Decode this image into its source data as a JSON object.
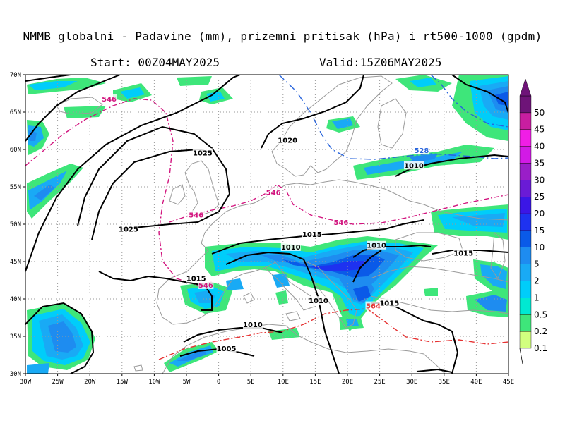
{
  "header": {
    "title": "NMMB globalni - Padavine (mm), prizemni pritisak (hPa) i rt500-1000 (gpdm)",
    "start": "Start: 00Z04MAY2025",
    "valid": "Valid:15Z06MAY2025"
  },
  "axes": {
    "lon_labels": [
      "30W",
      "25W",
      "20W",
      "15W",
      "10W",
      "5W",
      "0",
      "5E",
      "10E",
      "15E",
      "20E",
      "25E",
      "30E",
      "35E",
      "40E",
      "45E"
    ],
    "lat_labels": [
      "30N",
      "35N",
      "40N",
      "45N",
      "50N",
      "55N",
      "60N",
      "65N",
      "70N"
    ],
    "lon_range": [
      -30,
      45
    ],
    "lat_range": [
      30,
      70
    ],
    "grid": "dotted"
  },
  "colorbar": {
    "levels": [
      "0.1",
      "0.2",
      "0.5",
      "1",
      "2",
      "5",
      "10",
      "15",
      "20",
      "25",
      "30",
      "35",
      "40",
      "45",
      "50"
    ],
    "colors": [
      "#d2ff7f",
      "#3ee67a",
      "#00e9d2",
      "#00cdfa",
      "#19aaf5",
      "#1e8cf0",
      "#0a5ae8",
      "#1e32f0",
      "#3b16e6",
      "#6a1bd6",
      "#9a1ec8",
      "#d21ae6",
      "#f01ee6",
      "#c81ea0",
      "#6e1478"
    ]
  },
  "isobars": [
    {
      "label": "1025",
      "lon": -2.5,
      "lat": 59.5
    },
    {
      "label": "1025",
      "lon": -14,
      "lat": 49.3
    },
    {
      "label": "1020",
      "lon": 10.7,
      "lat": 61.2
    },
    {
      "label": "1015",
      "lon": 14.5,
      "lat": 48.6
    },
    {
      "label": "1015",
      "lon": -3.5,
      "lat": 42.7
    },
    {
      "label": "1015",
      "lon": 26.5,
      "lat": 39.4
    },
    {
      "label": "1015",
      "lon": 38,
      "lat": 46.1
    },
    {
      "label": "1010",
      "lon": 11.2,
      "lat": 46.9
    },
    {
      "label": "1010",
      "lon": 15.5,
      "lat": 39.7
    },
    {
      "label": "1010",
      "lon": 24.5,
      "lat": 47.1
    },
    {
      "label": "1010",
      "lon": 30.3,
      "lat": 57.8
    },
    {
      "label": "1010",
      "lon": 5.3,
      "lat": 36.5
    },
    {
      "label": "1005",
      "lon": 1.2,
      "lat": 33.3
    }
  ],
  "thickness_lines": [
    {
      "label": "546",
      "lon": -17,
      "lat": 66.7,
      "color": "#d2147e"
    },
    {
      "label": "546",
      "lon": -3.5,
      "lat": 51.2,
      "color": "#d2147e"
    },
    {
      "label": "546",
      "lon": 8.5,
      "lat": 54.2,
      "color": "#d2147e"
    },
    {
      "label": "546",
      "lon": 19,
      "lat": 50.2,
      "color": "#d2147e"
    },
    {
      "label": "546",
      "lon": -2,
      "lat": 41.8,
      "color": "#d2147e"
    },
    {
      "label": "528",
      "lon": 31.5,
      "lat": 59.8,
      "color": "#2864dc"
    },
    {
      "label": "564",
      "lon": 24,
      "lat": 39,
      "color": "#e63232"
    }
  ]
}
